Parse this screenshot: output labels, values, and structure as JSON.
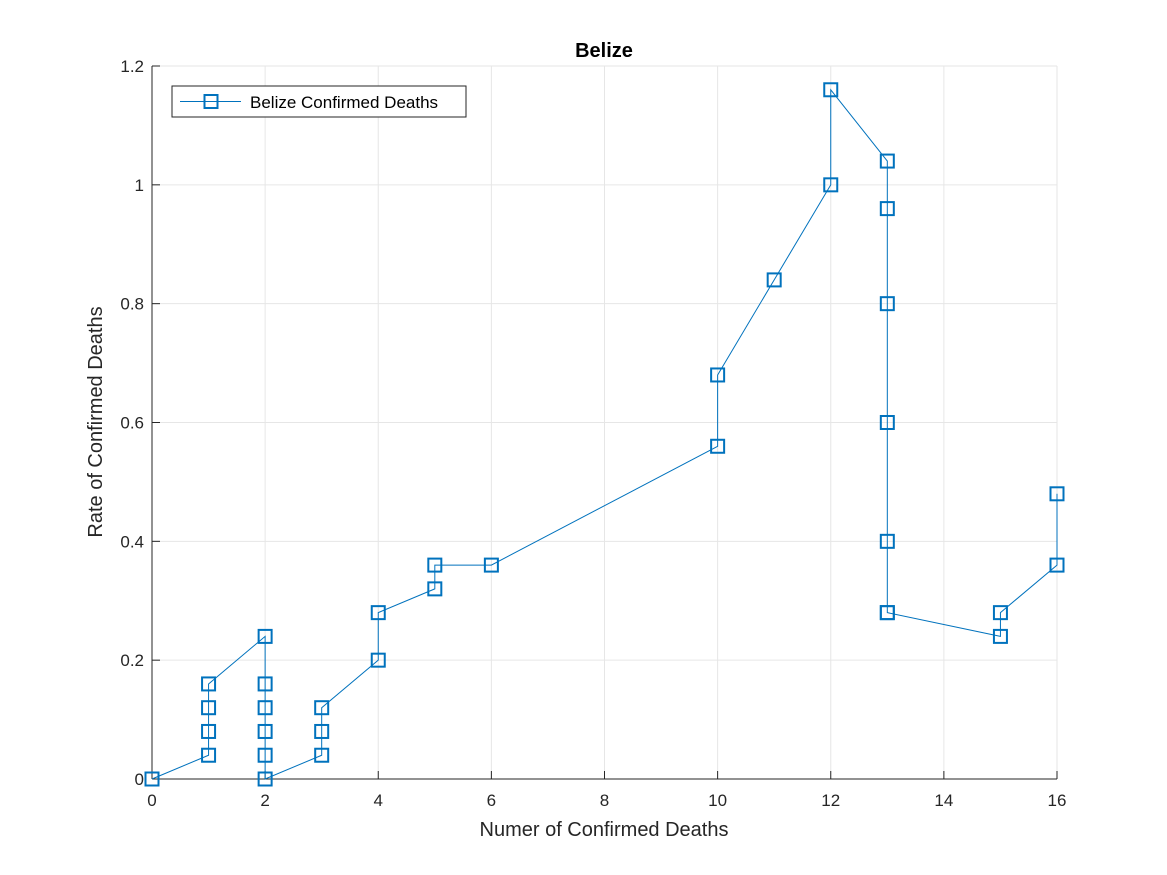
{
  "chart_data": {
    "type": "line",
    "title": "Belize",
    "xlabel": "Numer of Confirmed Deaths",
    "ylabel": "Rate of Confirmed Deaths",
    "xlim": [
      0,
      16
    ],
    "ylim": [
      0,
      1.2
    ],
    "xticks": [
      0,
      2,
      4,
      6,
      8,
      10,
      12,
      14,
      16
    ],
    "yticks": [
      0,
      0.2,
      0.4,
      0.6,
      0.8,
      1,
      1.2
    ],
    "xtick_labels": [
      "0",
      "2",
      "4",
      "6",
      "8",
      "10",
      "12",
      "14",
      "16"
    ],
    "ytick_labels": [
      "0",
      "0.2",
      "0.4",
      "0.6",
      "0.8",
      "1",
      "1.2"
    ],
    "grid": true,
    "legend_position": "top-left",
    "marker": "square",
    "series": [
      {
        "name": "Belize Confirmed Deaths",
        "color": "#0072BD",
        "x": [
          0,
          1,
          1,
          1,
          1,
          2,
          2,
          2,
          2,
          2,
          2,
          3,
          3,
          3,
          4,
          4,
          5,
          5,
          6,
          10,
          10,
          11,
          12,
          12,
          13,
          13,
          13,
          13,
          13,
          13,
          13,
          15,
          15,
          16,
          16
        ],
        "y": [
          0,
          0.04,
          0.08,
          0.12,
          0.16,
          0.24,
          0.16,
          0.12,
          0.08,
          0.04,
          0,
          0.04,
          0.08,
          0.12,
          0.2,
          0.28,
          0.32,
          0.36,
          0.36,
          0.56,
          0.68,
          0.84,
          1.0,
          1.16,
          1.04,
          0.96,
          0.8,
          0.6,
          0.4,
          0.28,
          0.28,
          0.24,
          0.28,
          0.36,
          0.48
        ]
      }
    ]
  }
}
